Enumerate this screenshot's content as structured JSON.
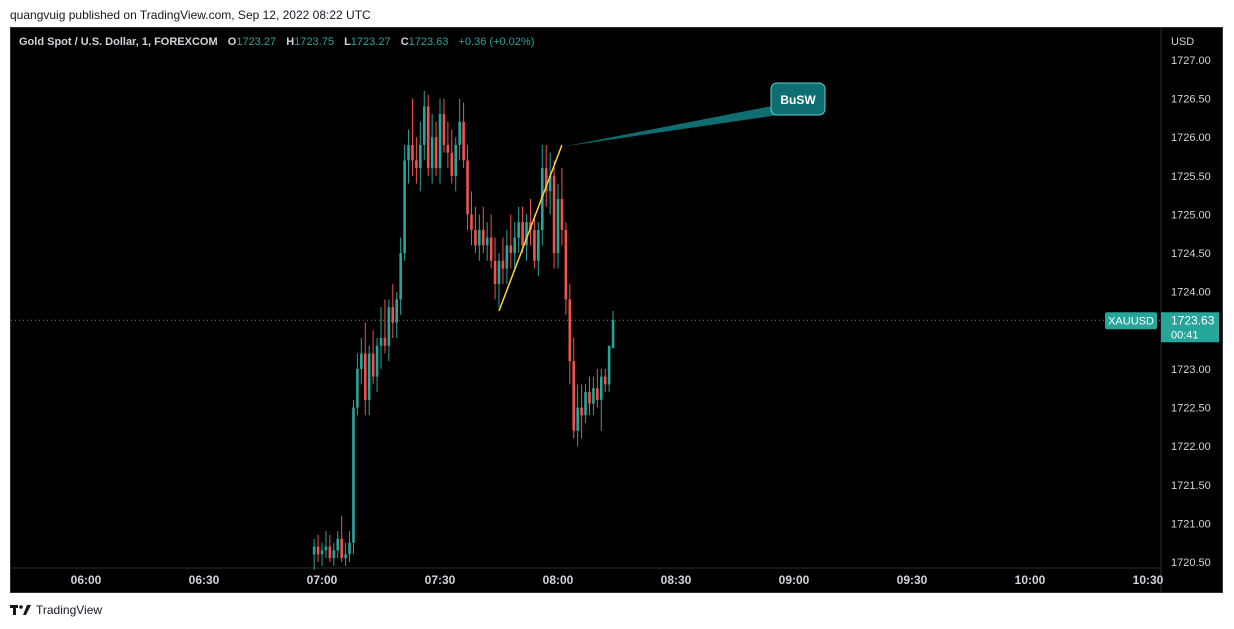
{
  "header": {
    "published": "quangvuig published on TradingView.com, Sep 12, 2022 08:22 UTC"
  },
  "legend": {
    "symbol": "Gold Spot / U.S. Dollar, 1, FOREXCOM",
    "o_label": "O",
    "o_value": "1723.27",
    "h_label": "H",
    "h_value": "1723.75",
    "l_label": "L",
    "l_value": "1723.27",
    "c_label": "C",
    "c_value": "1723.63",
    "change": "+0.36 (+0.02%)"
  },
  "price_axis": {
    "currency": "USD"
  },
  "price_tag": {
    "symbol": "XAUUSD",
    "price": "1723.63",
    "countdown": "00:41"
  },
  "annotation": {
    "text": "BuSW"
  },
  "footer": {
    "brand": "TradingView"
  },
  "colors": {
    "up": "#26a69a",
    "down": "#ef5350",
    "background": "#000000",
    "trendline": "#f5d442",
    "callout": "#0e6e72"
  },
  "icons": {
    "brand_logo": "tradingview-logo-icon"
  },
  "chart_data": {
    "type": "candlestick",
    "title": "Gold Spot / U.S. Dollar, 1, FOREXCOM",
    "x_ticks": [
      "06:00",
      "06:30",
      "07:00",
      "07:30",
      "08:00",
      "08:30",
      "09:00",
      "09:30",
      "10:00",
      "10:30"
    ],
    "y_ticks": [
      "1720.50",
      "1721.00",
      "1721.50",
      "1722.00",
      "1722.50",
      "1723.00",
      "1723.50",
      "1724.00",
      "1724.50",
      "1725.00",
      "1725.50",
      "1726.00",
      "1726.50",
      "1727.00"
    ],
    "ylim": [
      1720.45,
      1727.1
    ],
    "last_price": 1723.63,
    "candles": [
      {
        "t": "06:58",
        "o": 1720.6,
        "h": 1720.8,
        "l": 1720.4,
        "c": 1720.7
      },
      {
        "t": "06:59",
        "o": 1720.7,
        "h": 1720.85,
        "l": 1720.5,
        "c": 1720.6
      },
      {
        "t": "07:00",
        "o": 1720.6,
        "h": 1720.75,
        "l": 1720.45,
        "c": 1720.65
      },
      {
        "t": "07:01",
        "o": 1720.65,
        "h": 1720.9,
        "l": 1720.55,
        "c": 1720.7
      },
      {
        "t": "07:02",
        "o": 1720.7,
        "h": 1720.85,
        "l": 1720.5,
        "c": 1720.55
      },
      {
        "t": "07:03",
        "o": 1720.55,
        "h": 1720.75,
        "l": 1720.45,
        "c": 1720.65
      },
      {
        "t": "07:04",
        "o": 1720.65,
        "h": 1720.9,
        "l": 1720.55,
        "c": 1720.8
      },
      {
        "t": "07:05",
        "o": 1720.8,
        "h": 1721.1,
        "l": 1720.5,
        "c": 1720.55
      },
      {
        "t": "07:06",
        "o": 1720.55,
        "h": 1720.75,
        "l": 1720.45,
        "c": 1720.6
      },
      {
        "t": "07:07",
        "o": 1720.6,
        "h": 1720.9,
        "l": 1720.5,
        "c": 1720.75
      },
      {
        "t": "07:08",
        "o": 1720.75,
        "h": 1722.6,
        "l": 1720.6,
        "c": 1722.5
      },
      {
        "t": "07:09",
        "o": 1722.5,
        "h": 1723.2,
        "l": 1722.4,
        "c": 1723.0
      },
      {
        "t": "07:10",
        "o": 1723.0,
        "h": 1723.4,
        "l": 1722.8,
        "c": 1723.2
      },
      {
        "t": "07:11",
        "o": 1723.2,
        "h": 1723.6,
        "l": 1722.4,
        "c": 1722.6
      },
      {
        "t": "07:12",
        "o": 1722.6,
        "h": 1723.3,
        "l": 1722.4,
        "c": 1723.2
      },
      {
        "t": "07:13",
        "o": 1723.2,
        "h": 1723.5,
        "l": 1722.8,
        "c": 1722.9
      },
      {
        "t": "07:14",
        "o": 1722.9,
        "h": 1723.4,
        "l": 1722.7,
        "c": 1723.3
      },
      {
        "t": "07:15",
        "o": 1723.3,
        "h": 1723.8,
        "l": 1723.0,
        "c": 1723.4
      },
      {
        "t": "07:16",
        "o": 1723.4,
        "h": 1723.9,
        "l": 1723.2,
        "c": 1723.3
      },
      {
        "t": "07:17",
        "o": 1723.3,
        "h": 1723.9,
        "l": 1723.1,
        "c": 1723.8
      },
      {
        "t": "07:18",
        "o": 1723.8,
        "h": 1724.1,
        "l": 1723.4,
        "c": 1723.6
      },
      {
        "t": "07:19",
        "o": 1723.6,
        "h": 1724.0,
        "l": 1723.4,
        "c": 1723.9
      },
      {
        "t": "07:20",
        "o": 1723.9,
        "h": 1724.7,
        "l": 1723.7,
        "c": 1724.5
      },
      {
        "t": "07:21",
        "o": 1724.5,
        "h": 1725.9,
        "l": 1724.4,
        "c": 1725.7
      },
      {
        "t": "07:22",
        "o": 1725.7,
        "h": 1726.1,
        "l": 1725.4,
        "c": 1725.9
      },
      {
        "t": "07:23",
        "o": 1725.9,
        "h": 1726.5,
        "l": 1725.5,
        "c": 1725.7
      },
      {
        "t": "07:24",
        "o": 1725.7,
        "h": 1726.0,
        "l": 1725.4,
        "c": 1725.6
      },
      {
        "t": "07:25",
        "o": 1725.6,
        "h": 1726.2,
        "l": 1725.3,
        "c": 1725.9
      },
      {
        "t": "07:26",
        "o": 1725.9,
        "h": 1726.6,
        "l": 1725.7,
        "c": 1726.4
      },
      {
        "t": "07:27",
        "o": 1726.4,
        "h": 1726.55,
        "l": 1725.5,
        "c": 1725.6
      },
      {
        "t": "07:28",
        "o": 1725.6,
        "h": 1726.3,
        "l": 1725.4,
        "c": 1726.0
      },
      {
        "t": "07:29",
        "o": 1726.0,
        "h": 1726.2,
        "l": 1725.5,
        "c": 1725.6
      },
      {
        "t": "07:30",
        "o": 1725.6,
        "h": 1726.5,
        "l": 1725.4,
        "c": 1726.3
      },
      {
        "t": "07:31",
        "o": 1726.3,
        "h": 1726.5,
        "l": 1725.8,
        "c": 1725.9
      },
      {
        "t": "07:32",
        "o": 1725.9,
        "h": 1726.2,
        "l": 1725.6,
        "c": 1725.8
      },
      {
        "t": "07:33",
        "o": 1725.8,
        "h": 1726.1,
        "l": 1725.4,
        "c": 1725.5
      },
      {
        "t": "07:34",
        "o": 1725.5,
        "h": 1726.0,
        "l": 1725.3,
        "c": 1725.9
      },
      {
        "t": "07:35",
        "o": 1725.9,
        "h": 1726.5,
        "l": 1725.7,
        "c": 1726.2
      },
      {
        "t": "07:36",
        "o": 1726.2,
        "h": 1726.45,
        "l": 1725.6,
        "c": 1725.7
      },
      {
        "t": "07:37",
        "o": 1725.7,
        "h": 1725.9,
        "l": 1724.8,
        "c": 1725.0
      },
      {
        "t": "07:38",
        "o": 1725.0,
        "h": 1725.3,
        "l": 1724.6,
        "c": 1724.8
      },
      {
        "t": "07:39",
        "o": 1724.8,
        "h": 1725.1,
        "l": 1724.5,
        "c": 1724.6
      },
      {
        "t": "07:40",
        "o": 1724.6,
        "h": 1725.0,
        "l": 1724.4,
        "c": 1724.8
      },
      {
        "t": "07:41",
        "o": 1724.8,
        "h": 1725.1,
        "l": 1724.5,
        "c": 1724.6
      },
      {
        "t": "07:42",
        "o": 1724.6,
        "h": 1724.9,
        "l": 1724.4,
        "c": 1724.7
      },
      {
        "t": "07:43",
        "o": 1724.7,
        "h": 1725.0,
        "l": 1724.3,
        "c": 1724.4
      },
      {
        "t": "07:44",
        "o": 1724.4,
        "h": 1724.7,
        "l": 1723.9,
        "c": 1724.1
      },
      {
        "t": "07:45",
        "o": 1724.1,
        "h": 1724.5,
        "l": 1723.8,
        "c": 1724.4
      },
      {
        "t": "07:46",
        "o": 1724.4,
        "h": 1724.7,
        "l": 1724.1,
        "c": 1724.3
      },
      {
        "t": "07:47",
        "o": 1724.3,
        "h": 1724.8,
        "l": 1724.1,
        "c": 1724.6
      },
      {
        "t": "07:48",
        "o": 1724.6,
        "h": 1725.0,
        "l": 1724.3,
        "c": 1724.5
      },
      {
        "t": "07:49",
        "o": 1724.5,
        "h": 1724.9,
        "l": 1724.3,
        "c": 1724.7
      },
      {
        "t": "07:50",
        "o": 1724.7,
        "h": 1725.1,
        "l": 1724.5,
        "c": 1724.9
      },
      {
        "t": "07:51",
        "o": 1724.9,
        "h": 1725.1,
        "l": 1724.5,
        "c": 1724.6
      },
      {
        "t": "07:52",
        "o": 1724.6,
        "h": 1725.0,
        "l": 1724.4,
        "c": 1724.9
      },
      {
        "t": "07:53",
        "o": 1724.9,
        "h": 1725.2,
        "l": 1724.6,
        "c": 1724.8
      },
      {
        "t": "07:54",
        "o": 1724.8,
        "h": 1725.0,
        "l": 1724.3,
        "c": 1724.4
      },
      {
        "t": "07:55",
        "o": 1724.4,
        "h": 1724.9,
        "l": 1724.2,
        "c": 1724.8
      },
      {
        "t": "07:56",
        "o": 1724.8,
        "h": 1725.9,
        "l": 1724.6,
        "c": 1725.6
      },
      {
        "t": "07:57",
        "o": 1725.6,
        "h": 1725.9,
        "l": 1725.1,
        "c": 1725.3
      },
      {
        "t": "07:58",
        "o": 1725.3,
        "h": 1725.8,
        "l": 1725.0,
        "c": 1725.5
      },
      {
        "t": "07:59",
        "o": 1725.5,
        "h": 1725.7,
        "l": 1724.3,
        "c": 1724.5
      },
      {
        "t": "08:00",
        "o": 1724.5,
        "h": 1725.4,
        "l": 1724.3,
        "c": 1725.2
      },
      {
        "t": "08:01",
        "o": 1725.2,
        "h": 1725.6,
        "l": 1724.6,
        "c": 1724.8
      },
      {
        "t": "08:02",
        "o": 1724.8,
        "h": 1724.9,
        "l": 1723.7,
        "c": 1723.9
      },
      {
        "t": "08:03",
        "o": 1723.9,
        "h": 1724.1,
        "l": 1722.8,
        "c": 1723.1
      },
      {
        "t": "08:04",
        "o": 1723.1,
        "h": 1723.4,
        "l": 1722.1,
        "c": 1722.2
      },
      {
        "t": "08:05",
        "o": 1722.2,
        "h": 1722.8,
        "l": 1722.0,
        "c": 1722.5
      },
      {
        "t": "08:06",
        "o": 1722.5,
        "h": 1722.8,
        "l": 1722.1,
        "c": 1722.4
      },
      {
        "t": "08:07",
        "o": 1722.4,
        "h": 1722.8,
        "l": 1722.3,
        "c": 1722.7
      },
      {
        "t": "08:08",
        "o": 1722.7,
        "h": 1722.9,
        "l": 1722.4,
        "c": 1722.55
      },
      {
        "t": "08:09",
        "o": 1722.55,
        "h": 1722.9,
        "l": 1722.4,
        "c": 1722.75
      },
      {
        "t": "08:10",
        "o": 1722.75,
        "h": 1723.0,
        "l": 1722.5,
        "c": 1722.6
      },
      {
        "t": "08:11",
        "o": 1722.6,
        "h": 1723.0,
        "l": 1722.2,
        "c": 1722.9
      },
      {
        "t": "08:12",
        "o": 1722.9,
        "h": 1723.0,
        "l": 1722.7,
        "c": 1722.8
      },
      {
        "t": "08:13",
        "o": 1722.8,
        "h": 1723.3,
        "l": 1722.7,
        "c": 1723.3
      },
      {
        "t": "08:14",
        "o": 1723.27,
        "h": 1723.75,
        "l": 1723.27,
        "c": 1723.63
      }
    ],
    "trendline": {
      "from": {
        "t": "07:45",
        "p": 1723.75
      },
      "to": {
        "t": "08:01",
        "p": 1725.9
      }
    },
    "callout": {
      "text": "BuSW",
      "anchor": {
        "t": "08:01",
        "p": 1725.88
      }
    }
  }
}
